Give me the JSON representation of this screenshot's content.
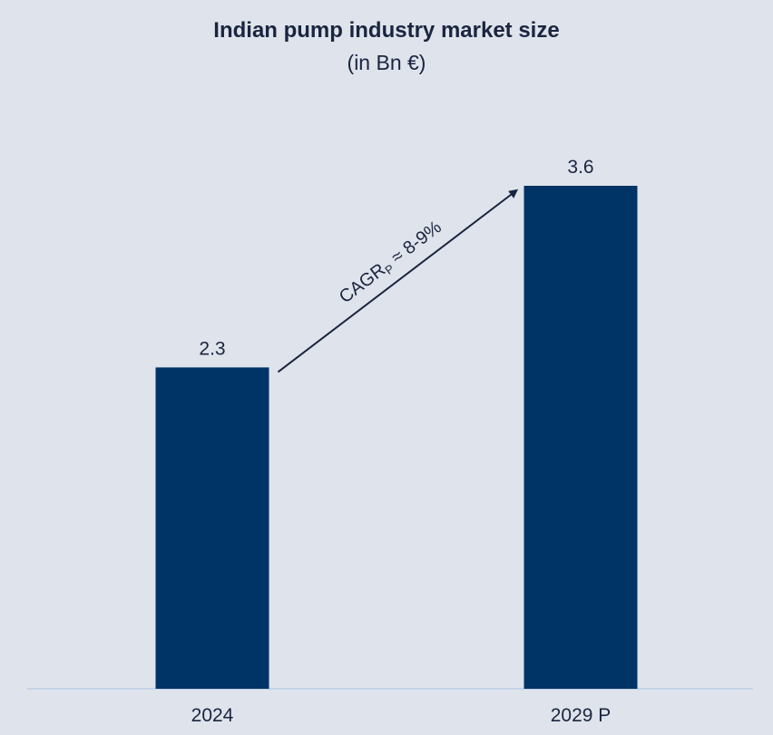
{
  "chart_data": {
    "type": "bar",
    "title": "Indian pump industry market size",
    "subtitle": "(in Bn €)",
    "categories": [
      "2024",
      "2029 P"
    ],
    "values": [
      2.3,
      3.6
    ],
    "data_labels": [
      "2.3",
      "3.6"
    ],
    "ylim": [
      0,
      3.6
    ],
    "grid": false,
    "legend": "none",
    "bar_color": "#003366",
    "annotation": {
      "text_main": "CAGR",
      "text_sub": "P",
      "text_rest": " ≈ 8-9%",
      "from_category": "2024",
      "to_category": "2029 P"
    }
  }
}
